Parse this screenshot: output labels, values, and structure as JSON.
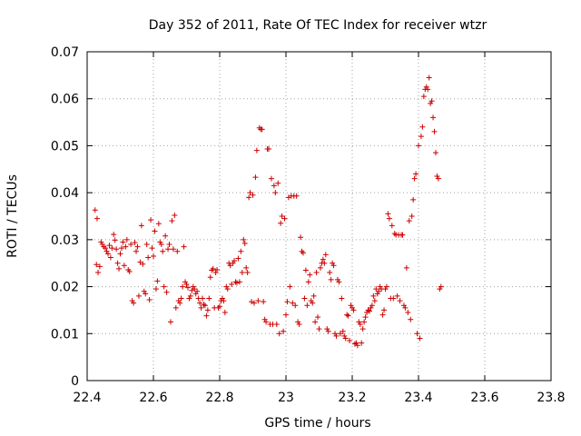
{
  "chart_data": {
    "type": "scatter",
    "title": "Day 352 of 2011, Rate Of TEC Index for receiver wtzr",
    "xlabel": "GPS time / hours",
    "ylabel": "ROTI / TECUs",
    "xlim": [
      22.4,
      23.8
    ],
    "ylim": [
      0,
      0.07
    ],
    "x_ticks": [
      "22.4",
      "22.6",
      "22.8",
      "23",
      "23.2",
      "23.4",
      "23.6",
      "23.8"
    ],
    "y_ticks": [
      "0",
      "0.01",
      "0.02",
      "0.03",
      "0.04",
      "0.05",
      "0.06",
      "0.07"
    ],
    "grid": true,
    "marker": "plus",
    "series": [
      {
        "color": "#cc0000",
        "points": [
          [
            22.424,
            0.0363
          ],
          [
            22.43,
            0.0345
          ],
          [
            22.428,
            0.0247
          ],
          [
            22.433,
            0.023
          ],
          [
            22.438,
            0.0243
          ],
          [
            22.442,
            0.0295
          ],
          [
            22.446,
            0.029
          ],
          [
            22.45,
            0.0285
          ],
          [
            22.455,
            0.0282
          ],
          [
            22.459,
            0.0275
          ],
          [
            22.463,
            0.027
          ],
          [
            22.467,
            0.0288
          ],
          [
            22.471,
            0.0262
          ],
          [
            22.475,
            0.0282
          ],
          [
            22.48,
            0.0311
          ],
          [
            22.484,
            0.0299
          ],
          [
            22.488,
            0.028
          ],
          [
            22.492,
            0.025
          ],
          [
            22.496,
            0.0238
          ],
          [
            22.5,
            0.027
          ],
          [
            22.504,
            0.0282
          ],
          [
            22.508,
            0.0295
          ],
          [
            22.512,
            0.0245
          ],
          [
            22.516,
            0.0285
          ],
          [
            22.52,
            0.03
          ],
          [
            22.524,
            0.0236
          ],
          [
            22.528,
            0.0232
          ],
          [
            22.532,
            0.029
          ],
          [
            22.536,
            0.017
          ],
          [
            22.54,
            0.0165
          ],
          [
            22.544,
            0.0294
          ],
          [
            22.548,
            0.0275
          ],
          [
            22.552,
            0.0285
          ],
          [
            22.556,
            0.018
          ],
          [
            22.56,
            0.0252
          ],
          [
            22.564,
            0.033
          ],
          [
            22.568,
            0.0248
          ],
          [
            22.572,
            0.019
          ],
          [
            22.576,
            0.0185
          ],
          [
            22.58,
            0.029
          ],
          [
            22.584,
            0.0262
          ],
          [
            22.588,
            0.0172
          ],
          [
            22.592,
            0.0342
          ],
          [
            22.596,
            0.0282
          ],
          [
            22.6,
            0.0265
          ],
          [
            22.604,
            0.0318
          ],
          [
            22.608,
            0.0195
          ],
          [
            22.612,
            0.0212
          ],
          [
            22.616,
            0.0334
          ],
          [
            22.62,
            0.0295
          ],
          [
            22.624,
            0.029
          ],
          [
            22.628,
            0.0275
          ],
          [
            22.632,
            0.02
          ],
          [
            22.636,
            0.0308
          ],
          [
            22.64,
            0.0188
          ],
          [
            22.644,
            0.028
          ],
          [
            22.648,
            0.029
          ],
          [
            22.652,
            0.0125
          ],
          [
            22.656,
            0.034
          ],
          [
            22.66,
            0.028
          ],
          [
            22.664,
            0.0352
          ],
          [
            22.668,
            0.0155
          ],
          [
            22.672,
            0.0275
          ],
          [
            22.676,
            0.017
          ],
          [
            22.68,
            0.0165
          ],
          [
            22.684,
            0.0175
          ],
          [
            22.688,
            0.02
          ],
          [
            22.692,
            0.0285
          ],
          [
            22.696,
            0.021
          ],
          [
            22.7,
            0.0205
          ],
          [
            22.704,
            0.0198
          ],
          [
            22.708,
            0.0175
          ],
          [
            22.712,
            0.018
          ],
          [
            22.716,
            0.0192
          ],
          [
            22.72,
            0.02
          ],
          [
            22.724,
            0.0195
          ],
          [
            22.728,
            0.0185
          ],
          [
            22.732,
            0.019
          ],
          [
            22.736,
            0.0175
          ],
          [
            22.74,
            0.0165
          ],
          [
            22.744,
            0.0155
          ],
          [
            22.748,
            0.0175
          ],
          [
            22.752,
            0.0162
          ],
          [
            22.756,
            0.016
          ],
          [
            22.76,
            0.0138
          ],
          [
            22.764,
            0.015
          ],
          [
            22.768,
            0.0175
          ],
          [
            22.772,
            0.022
          ],
          [
            22.776,
            0.0235
          ],
          [
            22.78,
            0.0238
          ],
          [
            22.784,
            0.0155
          ],
          [
            22.788,
            0.023
          ],
          [
            22.792,
            0.0236
          ],
          [
            22.796,
            0.0155
          ],
          [
            22.8,
            0.0158
          ],
          [
            22.804,
            0.017
          ],
          [
            22.808,
            0.0175
          ],
          [
            22.812,
            0.017
          ],
          [
            22.816,
            0.0145
          ],
          [
            22.82,
            0.02
          ],
          [
            22.824,
            0.0195
          ],
          [
            22.828,
            0.025
          ],
          [
            22.832,
            0.0245
          ],
          [
            22.836,
            0.0205
          ],
          [
            22.84,
            0.025
          ],
          [
            22.844,
            0.0255
          ],
          [
            22.848,
            0.021
          ],
          [
            22.852,
            0.0208
          ],
          [
            22.856,
            0.026
          ],
          [
            22.86,
            0.021
          ],
          [
            22.864,
            0.0275
          ],
          [
            22.868,
            0.023
          ],
          [
            22.872,
            0.03
          ],
          [
            22.876,
            0.0292
          ],
          [
            22.88,
            0.024
          ],
          [
            22.884,
            0.023
          ],
          [
            22.888,
            0.039
          ],
          [
            22.892,
            0.04
          ],
          [
            22.896,
            0.0168
          ],
          [
            22.9,
            0.0395
          ],
          [
            22.904,
            0.0165
          ],
          [
            22.908,
            0.0433
          ],
          [
            22.912,
            0.049
          ],
          [
            22.916,
            0.017
          ],
          [
            22.92,
            0.0538
          ],
          [
            22.924,
            0.0535
          ],
          [
            22.928,
            0.0535
          ],
          [
            22.932,
            0.0168
          ],
          [
            22.936,
            0.013
          ],
          [
            22.94,
            0.0125
          ],
          [
            22.944,
            0.0493
          ],
          [
            22.948,
            0.0493
          ],
          [
            22.952,
            0.012
          ],
          [
            22.956,
            0.043
          ],
          [
            22.96,
            0.012
          ],
          [
            22.964,
            0.0415
          ],
          [
            22.968,
            0.04
          ],
          [
            22.972,
            0.012
          ],
          [
            22.976,
            0.042
          ],
          [
            22.98,
            0.01
          ],
          [
            22.984,
            0.0335
          ],
          [
            22.988,
            0.035
          ],
          [
            22.992,
            0.0105
          ],
          [
            22.996,
            0.0345
          ],
          [
            23.0,
            0.014
          ],
          [
            23.004,
            0.0168
          ],
          [
            23.008,
            0.039
          ],
          [
            23.012,
            0.02
          ],
          [
            23.016,
            0.0393
          ],
          [
            23.02,
            0.0165
          ],
          [
            23.024,
            0.0393
          ],
          [
            23.028,
            0.016
          ],
          [
            23.032,
            0.0393
          ],
          [
            23.036,
            0.0125
          ],
          [
            23.04,
            0.012
          ],
          [
            23.044,
            0.0305
          ],
          [
            23.048,
            0.0275
          ],
          [
            23.052,
            0.0272
          ],
          [
            23.056,
            0.0175
          ],
          [
            23.06,
            0.0235
          ],
          [
            23.064,
            0.016
          ],
          [
            23.068,
            0.021
          ],
          [
            23.072,
            0.0225
          ],
          [
            23.076,
            0.017
          ],
          [
            23.08,
            0.0165
          ],
          [
            23.084,
            0.018
          ],
          [
            23.088,
            0.0125
          ],
          [
            23.092,
            0.023
          ],
          [
            23.096,
            0.0135
          ],
          [
            23.1,
            0.011
          ],
          [
            23.104,
            0.024
          ],
          [
            23.108,
            0.025
          ],
          [
            23.112,
            0.0258
          ],
          [
            23.116,
            0.025
          ],
          [
            23.12,
            0.0268
          ],
          [
            23.124,
            0.011
          ],
          [
            23.128,
            0.0105
          ],
          [
            23.132,
            0.023
          ],
          [
            23.136,
            0.0215
          ],
          [
            23.14,
            0.025
          ],
          [
            23.144,
            0.0245
          ],
          [
            23.148,
            0.01
          ],
          [
            23.152,
            0.0095
          ],
          [
            23.156,
            0.0215
          ],
          [
            23.16,
            0.021
          ],
          [
            23.164,
            0.01
          ],
          [
            23.168,
            0.0175
          ],
          [
            23.172,
            0.0105
          ],
          [
            23.176,
            0.0095
          ],
          [
            23.18,
            0.009
          ],
          [
            23.184,
            0.014
          ],
          [
            23.188,
            0.0138
          ],
          [
            23.192,
            0.0085
          ],
          [
            23.196,
            0.016
          ],
          [
            23.2,
            0.0155
          ],
          [
            23.204,
            0.015
          ],
          [
            23.208,
            0.0078
          ],
          [
            23.212,
            0.008
          ],
          [
            23.216,
            0.0075
          ],
          [
            23.22,
            0.0125
          ],
          [
            23.224,
            0.012
          ],
          [
            23.228,
            0.008
          ],
          [
            23.232,
            0.011
          ],
          [
            23.236,
            0.0125
          ],
          [
            23.24,
            0.0135
          ],
          [
            23.244,
            0.0145
          ],
          [
            23.248,
            0.015
          ],
          [
            23.252,
            0.0148
          ],
          [
            23.256,
            0.0155
          ],
          [
            23.26,
            0.016
          ],
          [
            23.264,
            0.018
          ],
          [
            23.268,
            0.017
          ],
          [
            23.272,
            0.0195
          ],
          [
            23.276,
            0.0185
          ],
          [
            23.28,
            0.019
          ],
          [
            23.284,
            0.02
          ],
          [
            23.288,
            0.0195
          ],
          [
            23.292,
            0.014
          ],
          [
            23.296,
            0.015
          ],
          [
            23.3,
            0.0195
          ],
          [
            23.304,
            0.02
          ],
          [
            23.308,
            0.0355
          ],
          [
            23.312,
            0.0345
          ],
          [
            23.316,
            0.0175
          ],
          [
            23.32,
            0.033
          ],
          [
            23.324,
            0.0175
          ],
          [
            23.328,
            0.0313
          ],
          [
            23.332,
            0.031
          ],
          [
            23.336,
            0.018
          ],
          [
            23.34,
            0.031
          ],
          [
            23.344,
            0.017
          ],
          [
            23.348,
            0.031
          ],
          [
            23.352,
            0.031
          ],
          [
            23.356,
            0.016
          ],
          [
            23.36,
            0.0155
          ],
          [
            23.364,
            0.024
          ],
          [
            23.368,
            0.0145
          ],
          [
            23.372,
            0.034
          ],
          [
            23.376,
            0.013
          ],
          [
            23.38,
            0.035
          ],
          [
            23.384,
            0.0385
          ],
          [
            23.388,
            0.043
          ],
          [
            23.392,
            0.044
          ],
          [
            23.396,
            0.01
          ],
          [
            23.4,
            0.05
          ],
          [
            23.404,
            0.009
          ],
          [
            23.408,
            0.052
          ],
          [
            23.412,
            0.054
          ],
          [
            23.416,
            0.0605
          ],
          [
            23.42,
            0.062
          ],
          [
            23.424,
            0.0625
          ],
          [
            23.428,
            0.062
          ],
          [
            23.432,
            0.0645
          ],
          [
            23.436,
            0.059
          ],
          [
            23.44,
            0.0595
          ],
          [
            23.444,
            0.056
          ],
          [
            23.448,
            0.053
          ],
          [
            23.452,
            0.0485
          ],
          [
            23.456,
            0.0435
          ],
          [
            23.46,
            0.043
          ],
          [
            23.464,
            0.0195
          ],
          [
            23.468,
            0.02
          ]
        ]
      }
    ]
  }
}
